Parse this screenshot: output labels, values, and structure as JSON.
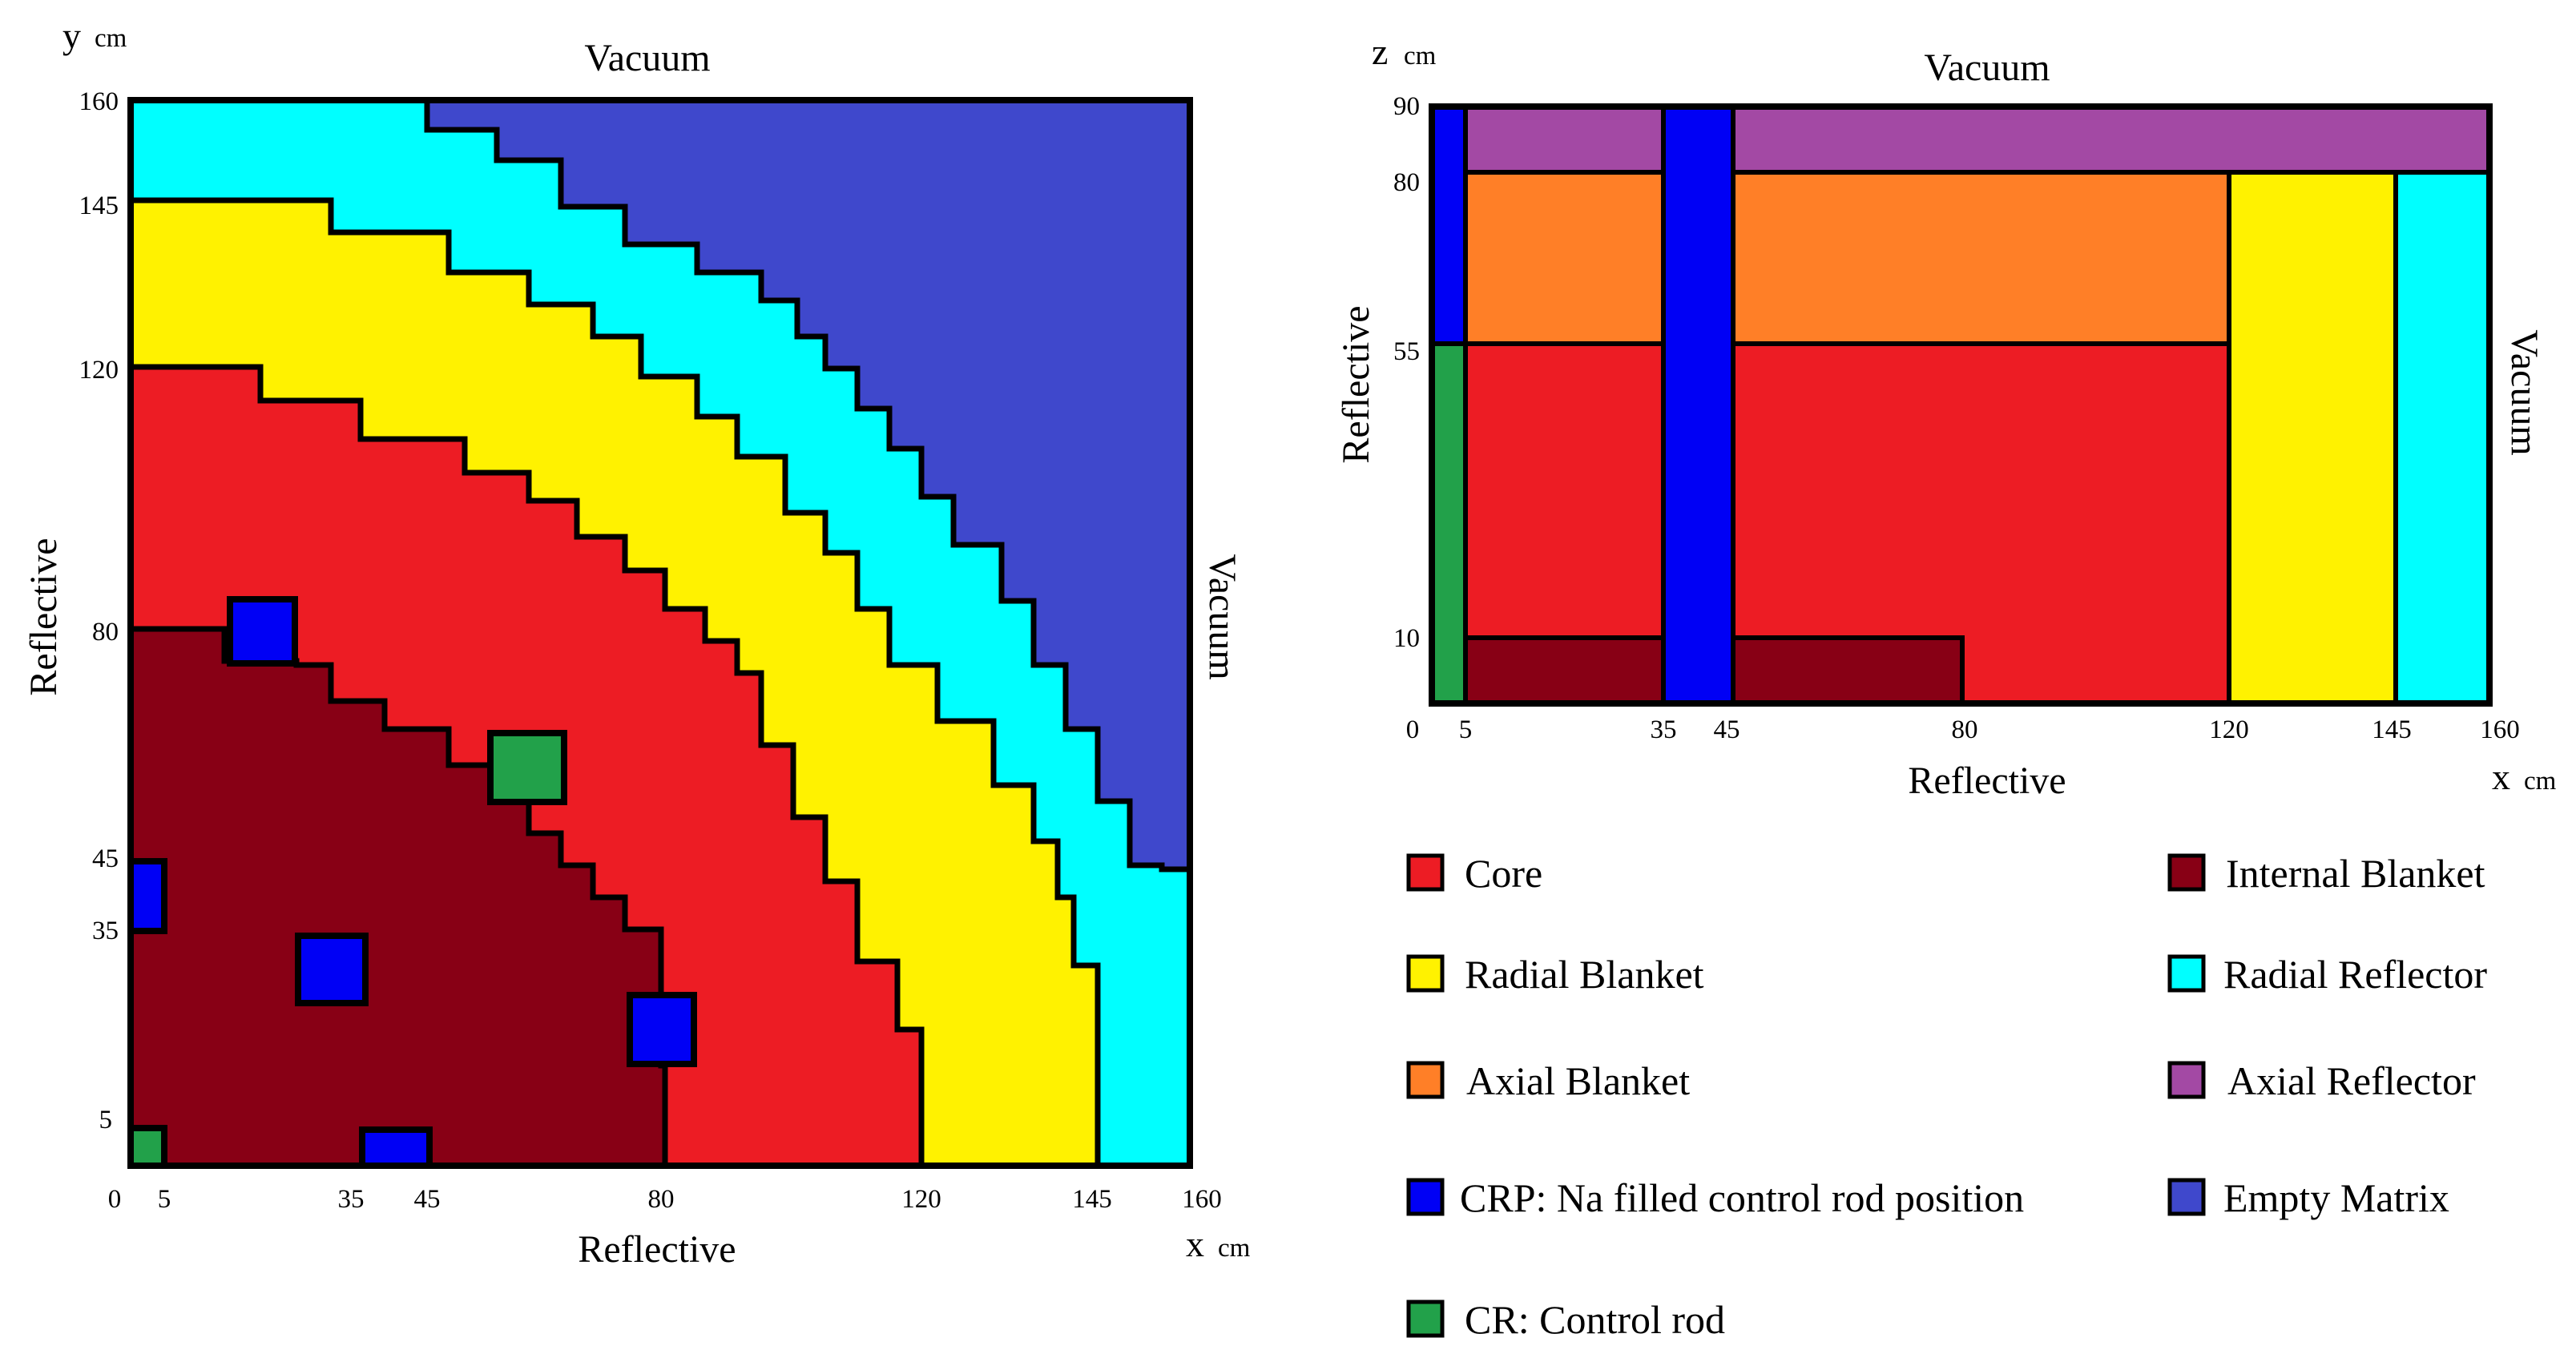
{
  "colors": {
    "core": "#ED1C24",
    "internal_blanket": "#880015",
    "radial_blanket": "#FFF200",
    "radial_reflector": "#00FFFF",
    "axial_blanket": "#FF7F27",
    "axial_reflector": "#A349A4",
    "crp": "#0000F5",
    "cr": "#22A14A",
    "empty_matrix": "#3F48CC"
  },
  "radial_view": {
    "y_axis_label": "y",
    "y_unit": "cm",
    "x_axis_label": "x",
    "x_unit": "cm",
    "top_boundary": "Vacuum",
    "right_boundary": "Vacuum",
    "left_boundary": "Reflective",
    "bottom_boundary": "Reflective",
    "x_ticks": [
      "0",
      "5",
      "35",
      "45",
      "80",
      "120",
      "145",
      "160"
    ],
    "y_ticks": [
      "160",
      "145",
      "120",
      "80",
      "45",
      "35",
      "5"
    ]
  },
  "axial_view": {
    "z_axis_label": "z",
    "z_unit": "cm",
    "x_axis_label": "x",
    "x_unit": "cm",
    "top_boundary": "Vacuum",
    "right_boundary": "Vacuum",
    "left_boundary": "Reflective",
    "bottom_boundary": "Reflective",
    "x_ticks": [
      "0",
      "5",
      "35",
      "45",
      "80",
      "120",
      "145",
      "160"
    ],
    "z_ticks": [
      "90",
      "80",
      "55",
      "10"
    ]
  },
  "legend": {
    "core": "Core",
    "internal_blanket": "Internal Blanket",
    "radial_blanket": "Radial Blanket",
    "radial_reflector": "Radial Reflector",
    "axial_blanket": "Axial Blanket",
    "axial_reflector": "Axial Reflector",
    "crp": "CRP: Na filled control rod position",
    "empty_matrix": "Empty Matrix",
    "cr": "CR: Control rod"
  }
}
